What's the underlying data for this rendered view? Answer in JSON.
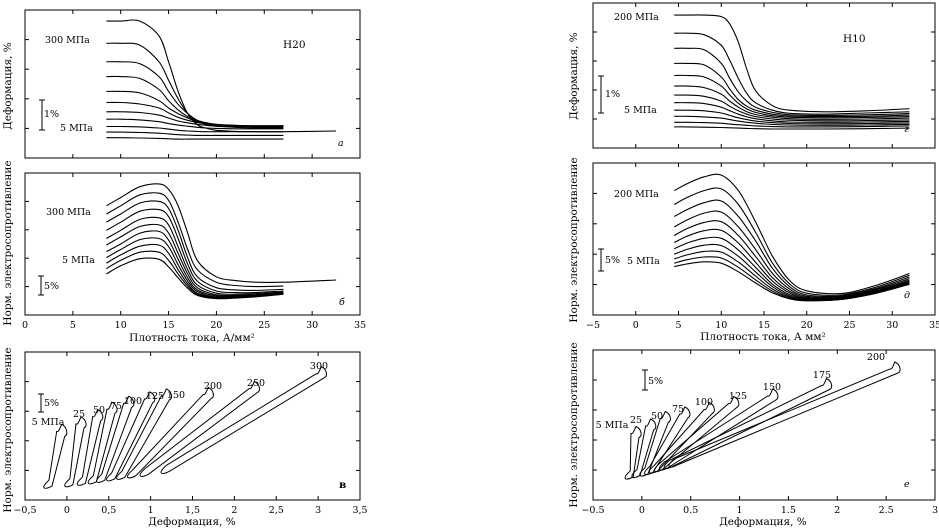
{
  "chart_data": [
    {
      "panel": "a",
      "type": "line",
      "tag": "Н20",
      "ylabel": "Деформация, %",
      "xlim": [
        0,
        35
      ],
      "x_ticks": [],
      "scale_bar": "1%",
      "curve_top_label": "300 МПа",
      "curve_bottom_label": "5 МПа",
      "x": [
        8.5,
        10,
        12,
        14,
        15,
        16,
        17,
        18,
        19,
        20,
        22,
        24,
        27,
        32.5
      ],
      "series": [
        {
          "values": [
            37,
            37,
            37,
            33,
            26,
            18,
            12,
            9,
            8,
            7.5,
            7.2,
            7.1,
            7.1,
            7.3
          ]
        },
        {
          "values": [
            31,
            31,
            30.5,
            26,
            21,
            16,
            12,
            10,
            9,
            8.6,
            8.3,
            8.1,
            8.1,
            null
          ]
        },
        {
          "values": [
            26,
            26,
            25.5,
            22,
            18,
            14.5,
            12,
            10.2,
            9.5,
            9.1,
            8.8,
            8.6,
            8.6,
            null
          ]
        },
        {
          "values": [
            22,
            22,
            21.5,
            18.5,
            15.5,
            13,
            11.2,
            10,
            9.4,
            9,
            8.8,
            8.7,
            8.7,
            null
          ]
        },
        {
          "values": [
            18,
            18,
            17.6,
            15.5,
            13.5,
            12,
            10.8,
            9.8,
            9.3,
            9,
            8.8,
            8.7,
            8.7,
            null
          ]
        },
        {
          "values": [
            15,
            15,
            14.6,
            13.5,
            12.2,
            11,
            10.2,
            9.6,
            9.2,
            8.9,
            8.7,
            8.6,
            8.6,
            null
          ]
        },
        {
          "values": [
            12.5,
            12.5,
            12.3,
            11.6,
            10.8,
            10,
            9.5,
            9.1,
            8.8,
            8.6,
            8.5,
            8.4,
            8.4,
            null
          ]
        },
        {
          "values": [
            10.5,
            10.5,
            10.3,
            9.8,
            9.3,
            8.9,
            8.6,
            8.3,
            8.1,
            8,
            7.9,
            7.9,
            7.9,
            null
          ]
        },
        {
          "values": [
            8.5,
            8.5,
            8.4,
            8.1,
            7.8,
            7.5,
            7.3,
            7.2,
            7.1,
            7.1,
            7.1,
            7.1,
            7.1,
            null
          ]
        },
        {
          "values": [
            7,
            7,
            6.9,
            6.7,
            6.5,
            6.3,
            6.2,
            6.1,
            6.1,
            6.1,
            6.1,
            6.1,
            6.1,
            null
          ]
        },
        {
          "values": [
            5.5,
            5.5,
            5.4,
            5.3,
            5.2,
            5.1,
            5.1,
            5.1,
            5.1,
            5.1,
            5.1,
            5.1,
            5.1,
            null
          ]
        }
      ]
    },
    {
      "panel": "б",
      "type": "line",
      "ylabel": "Норм. электросопротивление",
      "xlabel": "Плотность тока, А/мм²",
      "xlim": [
        0,
        35
      ],
      "x_ticks": [
        0,
        5,
        10,
        15,
        20,
        25,
        30,
        35
      ],
      "scale_bar": "5%",
      "curve_top_label": "300 МПа",
      "curve_bottom_label": "5 МПа",
      "x": [
        8.5,
        10,
        12,
        14,
        15,
        16,
        17,
        18,
        20,
        22,
        24,
        27,
        32.5
      ],
      "series": [
        {
          "values": [
            20,
            21.5,
            23.5,
            24,
            23,
            20,
            15,
            10,
            7,
            6.3,
            6,
            6,
            6.4
          ]
        },
        {
          "values": [
            18.5,
            20,
            22,
            22.3,
            21,
            17,
            12,
            8.3,
            6,
            5.4,
            5.2,
            5.3,
            null
          ]
        },
        {
          "values": [
            17,
            18.5,
            20.5,
            20.8,
            19.5,
            15.5,
            10.5,
            7,
            5,
            4.6,
            4.5,
            4.7,
            null
          ]
        },
        {
          "values": [
            15.5,
            17,
            19,
            19.3,
            18,
            14,
            9.3,
            6.2,
            4.4,
            4.1,
            4.1,
            4.4,
            null
          ]
        },
        {
          "values": [
            14,
            15.5,
            17.5,
            17.8,
            16.5,
            12.5,
            8.3,
            5.5,
            4,
            3.8,
            3.9,
            4.2,
            null
          ]
        },
        {
          "values": [
            12.8,
            14.3,
            16.2,
            16.5,
            15,
            11.3,
            7.5,
            5,
            3.7,
            3.6,
            3.7,
            4.1,
            null
          ]
        },
        {
          "values": [
            11.6,
            13,
            15,
            15.3,
            13.7,
            10.2,
            6.8,
            4.6,
            3.5,
            3.5,
            3.6,
            4,
            null
          ]
        },
        {
          "values": [
            10.5,
            12,
            13.8,
            14,
            12.5,
            9.2,
            6.2,
            4.3,
            3.3,
            3.4,
            3.5,
            3.9,
            null
          ]
        },
        {
          "values": [
            9.5,
            11,
            12.6,
            12.8,
            11.3,
            8.3,
            5.7,
            4,
            3.2,
            3.3,
            3.5,
            3.9,
            null
          ]
        },
        {
          "values": [
            8.5,
            10,
            11.5,
            11.5,
            10,
            7.5,
            5.3,
            3.8,
            3.1,
            3.2,
            3.4,
            3.8,
            null
          ]
        },
        {
          "values": [
            7.5,
            9,
            10.3,
            10.2,
            8.8,
            6.8,
            4.9,
            3.6,
            3,
            3.1,
            3.3,
            3.8,
            null
          ]
        }
      ]
    },
    {
      "panel": "в",
      "type": "line",
      "ylabel": "Норм. электросопротивление",
      "xlabel": "Деформация, %",
      "xlim": [
        -0.5,
        3.5
      ],
      "x_ticks": [
        "−0,5",
        "0",
        "0,5",
        "1",
        "1,5",
        "2",
        "2,5",
        "3",
        "3,5"
      ],
      "scale_bar": "5%",
      "loop_labels": [
        "5 МПа",
        "25",
        "50",
        "75",
        "100",
        "125",
        "150",
        "200",
        "250",
        "300"
      ]
    },
    {
      "panel": "г",
      "type": "line",
      "tag": "Н10",
      "ylabel": "Деформация, %",
      "xlim": [
        -5,
        35
      ],
      "x_ticks": [],
      "scale_bar": "1%",
      "curve_top_label": "200 МПа",
      "curve_bottom_label": "5 МПа",
      "x": [
        4.5,
        6,
        8,
        10,
        11,
        12,
        13,
        14,
        16,
        18,
        22,
        27,
        32
      ],
      "series": [
        {
          "values": [
            44,
            44,
            44,
            43.5,
            41,
            35,
            26,
            19,
            14,
            12.5,
            12,
            12.3,
            13
          ]
        },
        {
          "values": [
            38,
            38,
            37.5,
            34,
            29,
            23,
            18,
            15,
            12.5,
            11.5,
            11.2,
            11.6,
            12
          ]
        },
        {
          "values": [
            33,
            33,
            32.5,
            28,
            23,
            18.5,
            15.5,
            13.5,
            11.8,
            11,
            10.8,
            11,
            11.4
          ]
        },
        {
          "values": [
            28,
            28,
            27.5,
            23.5,
            19.5,
            16,
            13.8,
            12.5,
            11.2,
            10.6,
            10.4,
            10.5,
            10.9
          ]
        },
        {
          "values": [
            24,
            24,
            23.5,
            20.5,
            17.5,
            14.8,
            12.9,
            11.8,
            10.7,
            10.2,
            10,
            10.1,
            10.4
          ]
        },
        {
          "values": [
            20.5,
            20.5,
            20,
            17.8,
            15.5,
            13.5,
            12,
            11.1,
            10.2,
            9.7,
            9.5,
            9.6,
            9.9
          ]
        },
        {
          "values": [
            17.5,
            17.5,
            17.1,
            15.5,
            13.8,
            12.3,
            11.2,
            10.4,
            9.6,
            9.2,
            9,
            9.1,
            9.3
          ]
        },
        {
          "values": [
            15,
            15,
            14.7,
            13.5,
            12.3,
            11.2,
            10.3,
            9.7,
            9,
            8.6,
            8.5,
            8.6,
            8.8
          ]
        },
        {
          "values": [
            12.5,
            12.5,
            12.3,
            11.6,
            10.8,
            10,
            9.4,
            8.9,
            8.4,
            8.1,
            8,
            8.1,
            8.3
          ]
        },
        {
          "values": [
            10.5,
            10.5,
            10.3,
            9.9,
            9.4,
            8.9,
            8.5,
            8.2,
            7.8,
            7.6,
            7.5,
            7.6,
            7.8
          ]
        },
        {
          "values": [
            8.5,
            8.5,
            8.4,
            8.2,
            7.9,
            7.7,
            7.5,
            7.3,
            7.1,
            7,
            7,
            7.1,
            7.3
          ]
        },
        {
          "values": [
            7,
            7,
            6.9,
            6.8,
            6.7,
            6.6,
            6.5,
            6.4,
            6.3,
            6.3,
            6.3,
            6.4,
            6.6
          ]
        }
      ]
    },
    {
      "panel": "д",
      "type": "line",
      "ylabel": "Норм. электросопротивление",
      "xlabel": "Плотность тока, А мм²",
      "xlim": [
        -5,
        35
      ],
      "x_ticks": [
        "−5",
        "0",
        "5",
        "10",
        "15",
        "20",
        "25",
        "30",
        "35"
      ],
      "scale_bar": "5%",
      "curve_top_label": "200 МПа",
      "curve_bottom_label": "5 МПа",
      "x": [
        4.5,
        6,
        8,
        10,
        12,
        14,
        16,
        18,
        20,
        24,
        28,
        32
      ],
      "series": [
        {
          "values": [
            36,
            38,
            40,
            40.5,
            36,
            27,
            17,
            10,
            7,
            6.2,
            8.5,
            12
          ]
        },
        {
          "values": [
            32,
            34,
            36,
            36.5,
            32,
            24,
            15,
            9,
            6.3,
            5.8,
            8,
            11.5
          ]
        },
        {
          "values": [
            28.5,
            30.5,
            32.5,
            33,
            28.5,
            21.5,
            13.5,
            8.2,
            5.8,
            5.5,
            7.6,
            11
          ]
        },
        {
          "values": [
            25.5,
            27.5,
            29.5,
            29.8,
            25.5,
            19,
            12,
            7.5,
            5.4,
            5.3,
            7.3,
            10.5
          ]
        },
        {
          "values": [
            23,
            25,
            26.8,
            27,
            23,
            17,
            10.8,
            6.9,
            5.1,
            5.1,
            7,
            10.1
          ]
        },
        {
          "values": [
            21,
            22.8,
            24.4,
            24.5,
            20.8,
            15.3,
            9.8,
            6.4,
            4.8,
            4.9,
            6.8,
            9.8
          ]
        },
        {
          "values": [
            19.2,
            20.8,
            22.2,
            22.2,
            18.8,
            13.8,
            8.9,
            5.9,
            4.6,
            4.8,
            6.6,
            9.5
          ]
        },
        {
          "values": [
            17.6,
            19,
            20.2,
            20.1,
            17,
            12.5,
            8.2,
            5.5,
            4.4,
            4.7,
            6.5,
            9.3
          ]
        },
        {
          "values": [
            16.2,
            17.4,
            18.4,
            18.2,
            15.3,
            11.3,
            7.5,
            5.2,
            4.3,
            4.6,
            6.4,
            9.1
          ]
        },
        {
          "values": [
            15,
            16,
            16.8,
            16.5,
            13.8,
            10.2,
            6.9,
            4.9,
            4.2,
            4.5,
            6.3,
            9
          ]
        },
        {
          "values": [
            14,
            14.8,
            15.4,
            15,
            12.5,
            9.3,
            6.4,
            4.7,
            4.1,
            4.5,
            6.2,
            8.9
          ]
        }
      ]
    },
    {
      "panel": "е",
      "type": "line",
      "ylabel": "Норм. электросопротивление",
      "xlabel": "Деформация, %",
      "xlim": [
        -0.5,
        3
      ],
      "x_ticks": [
        "−0.5",
        "0",
        "0.5",
        "1",
        "1.5",
        "2",
        "2.5",
        "3"
      ],
      "scale_bar": "5%",
      "loop_labels": [
        "5 МПа",
        "25",
        "50",
        "75",
        "100",
        "125",
        "150",
        "175",
        "200"
      ]
    }
  ]
}
